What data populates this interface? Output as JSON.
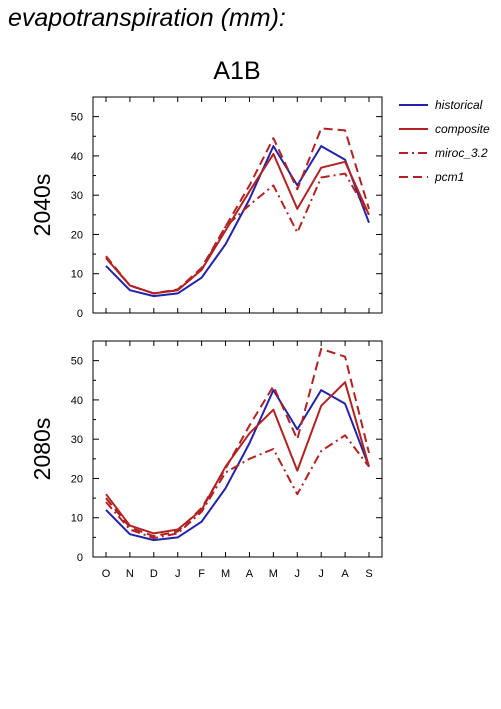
{
  "page": {
    "title": "evapotranspiration (mm):"
  },
  "chart_data": {
    "type": "line",
    "title": "A1B",
    "months": [
      "O",
      "N",
      "D",
      "J",
      "F",
      "M",
      "A",
      "M",
      "J",
      "J",
      "A",
      "S"
    ],
    "ylim": [
      0,
      55
    ],
    "yticks": [
      0,
      10,
      20,
      30,
      40,
      50
    ],
    "legend_position": "right",
    "legend": [
      {
        "name": "historical",
        "color": "#2222aa",
        "dash": "solid"
      },
      {
        "name": "composite",
        "color": "#b22222",
        "dash": "solid"
      },
      {
        "name": "miroc_3.2",
        "color": "#b22222",
        "dash": "dashdot"
      },
      {
        "name": "pcm1",
        "color": "#b22222",
        "dash": "dashed"
      }
    ],
    "panels": [
      {
        "ylabel": "2040s",
        "series": [
          {
            "name": "historical",
            "values": [
              12,
              5.8,
              4.3,
              5,
              9,
              17.5,
              29,
              42.5,
              32.5,
              42.5,
              39,
              23
            ]
          },
          {
            "name": "composite",
            "values": [
              14,
              7,
              5,
              5.8,
              11,
              21,
              31,
              40.5,
              26.5,
              37,
              38.5,
              25
            ]
          },
          {
            "name": "miroc_3.2",
            "values": [
              14,
              7,
              5,
              5.8,
              11,
              22,
              27.5,
              32.5,
              20.5,
              34.5,
              35.5,
              25
            ]
          },
          {
            "name": "pcm1",
            "values": [
              14.5,
              7,
              5,
              6,
              11.5,
              22,
              32.5,
              44.5,
              31.5,
              47,
              46.5,
              26.5
            ]
          }
        ]
      },
      {
        "ylabel": "2080s",
        "series": [
          {
            "name": "historical",
            "values": [
              12,
              5.8,
              4.3,
              5,
              9,
              17.5,
              29,
              42.5,
              32.5,
              42.5,
              39,
              23
            ]
          },
          {
            "name": "composite",
            "values": [
              16,
              8,
              6,
              7,
              12,
              23,
              31.5,
              37.5,
              22,
              38.5,
              44.5,
              23
            ]
          },
          {
            "name": "miroc_3.2",
            "values": [
              14,
              7,
              4.8,
              6,
              11.5,
              21.5,
              25,
              27.5,
              16,
              27,
              31,
              23
            ]
          },
          {
            "name": "pcm1",
            "values": [
              15,
              7.5,
              5.3,
              6.5,
              12.5,
              22.5,
              33.5,
              43.5,
              30,
              53,
              51,
              26.5
            ]
          }
        ]
      }
    ]
  }
}
